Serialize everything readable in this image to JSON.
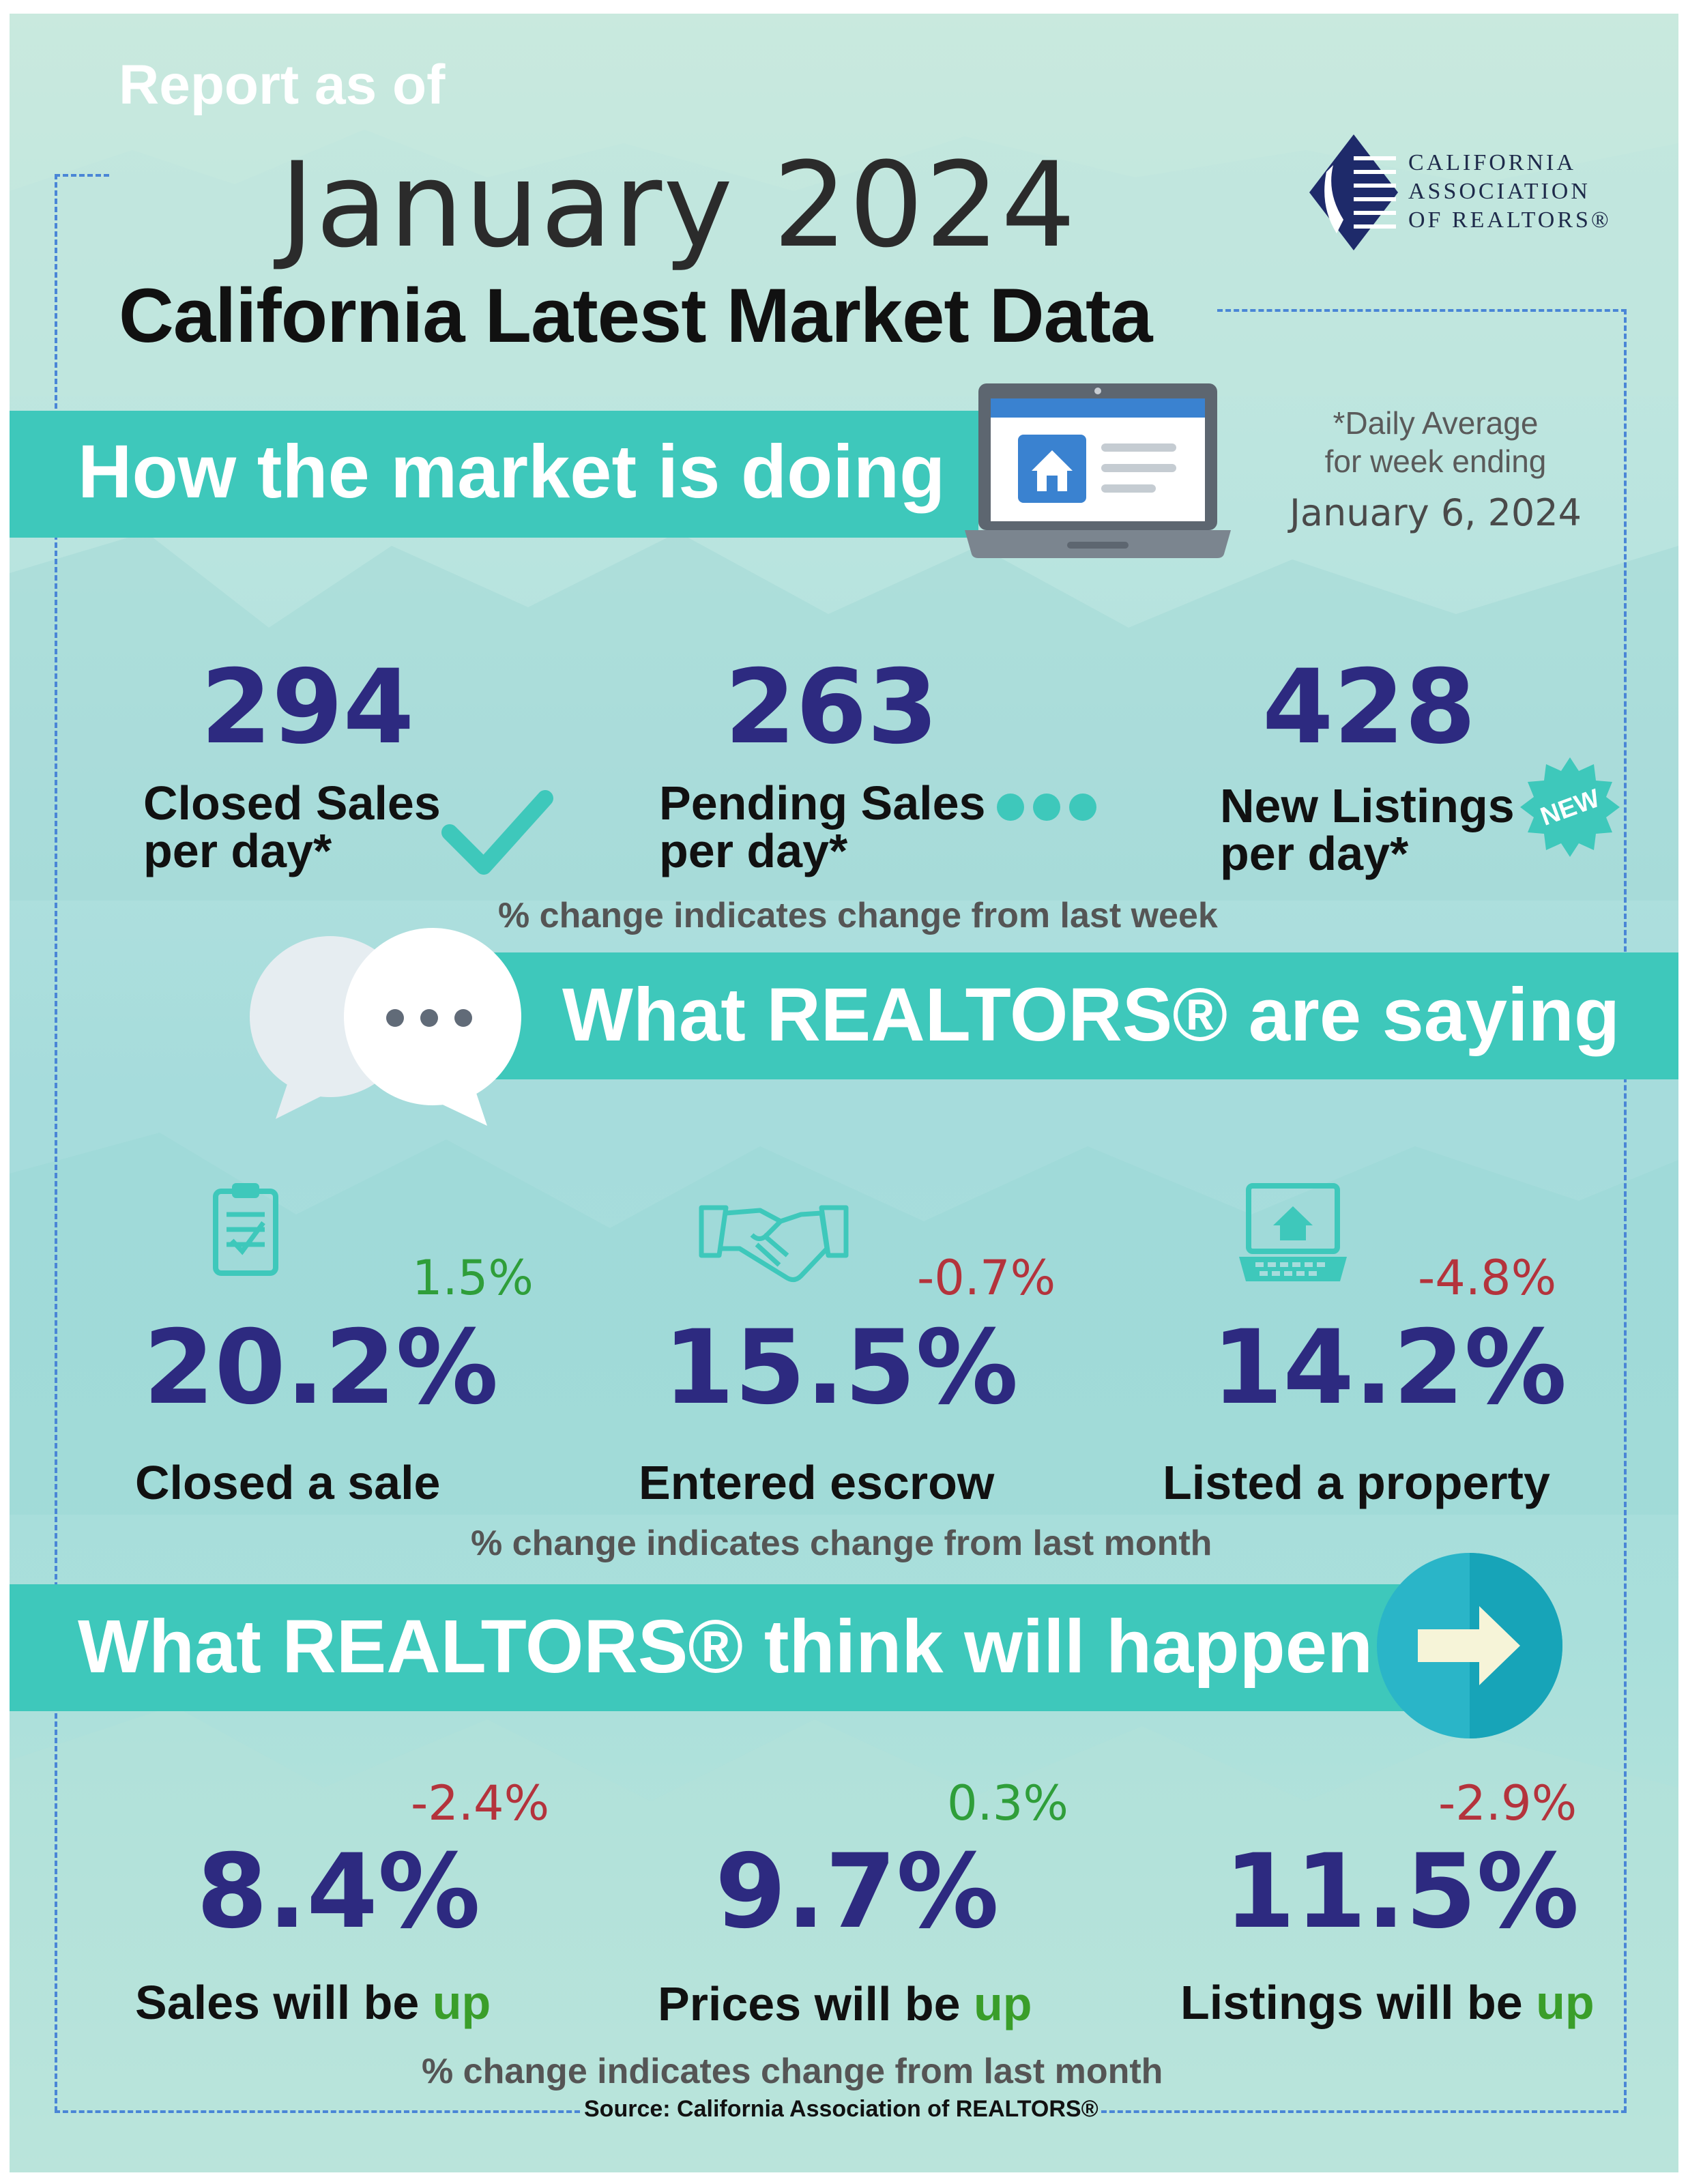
{
  "header": {
    "report_label": "Report as of",
    "month": "January 2024",
    "subtitle": "California Latest Market Data",
    "logo_lines": [
      "CALIFORNIA",
      "ASSOCIATION",
      "OF REALTORS®"
    ]
  },
  "market": {
    "heading": "How the market is doing",
    "daily_note_line1": "*Daily Average",
    "daily_note_line2": "for week ending",
    "week_ending": "January 6, 2024",
    "stats": [
      {
        "value": "294",
        "label_line1": "Closed Sales",
        "label_line2": "per day*",
        "icon": "checkmark-icon"
      },
      {
        "value": "263",
        "label_line1": "Pending Sales",
        "label_line2": "per day*",
        "icon": "dots-icon"
      },
      {
        "value": "428",
        "label_line1": "New Listings",
        "label_line2": "per day*",
        "icon": "new-badge-icon",
        "badge": "NEW"
      }
    ],
    "note": "% change indicates change from last week"
  },
  "saying": {
    "heading": "What REALTORS® are saying",
    "stats": [
      {
        "value": "20.2%",
        "change": "1.5%",
        "label": "Closed a sale",
        "icon": "clipboard-icon"
      },
      {
        "value": "15.5%",
        "change": "-0.7%",
        "label": "Entered escrow",
        "icon": "handshake-icon"
      },
      {
        "value": "14.2%",
        "change": "-4.8%",
        "label": "Listed a property",
        "icon": "laptop-house-icon"
      }
    ],
    "note": "% change indicates change from last month"
  },
  "think": {
    "heading": "What REALTORS® think will happen",
    "up_word": "up",
    "stats": [
      {
        "value": "8.4%",
        "change": "-2.4%",
        "label": "Sales will be "
      },
      {
        "value": "9.7%",
        "change": "0.3%",
        "label": "Prices will be "
      },
      {
        "value": "11.5%",
        "change": "-2.9%",
        "label": "Listings will be "
      }
    ],
    "note": "% change indicates change from last month"
  },
  "source": "Source: California Association of REALTORS®",
  "colors": {
    "band": "#3ec8bb",
    "number": "#2d2a80",
    "positive": "#2f9e3a",
    "negative": "#b4333c",
    "frame": "#4a86d6"
  }
}
